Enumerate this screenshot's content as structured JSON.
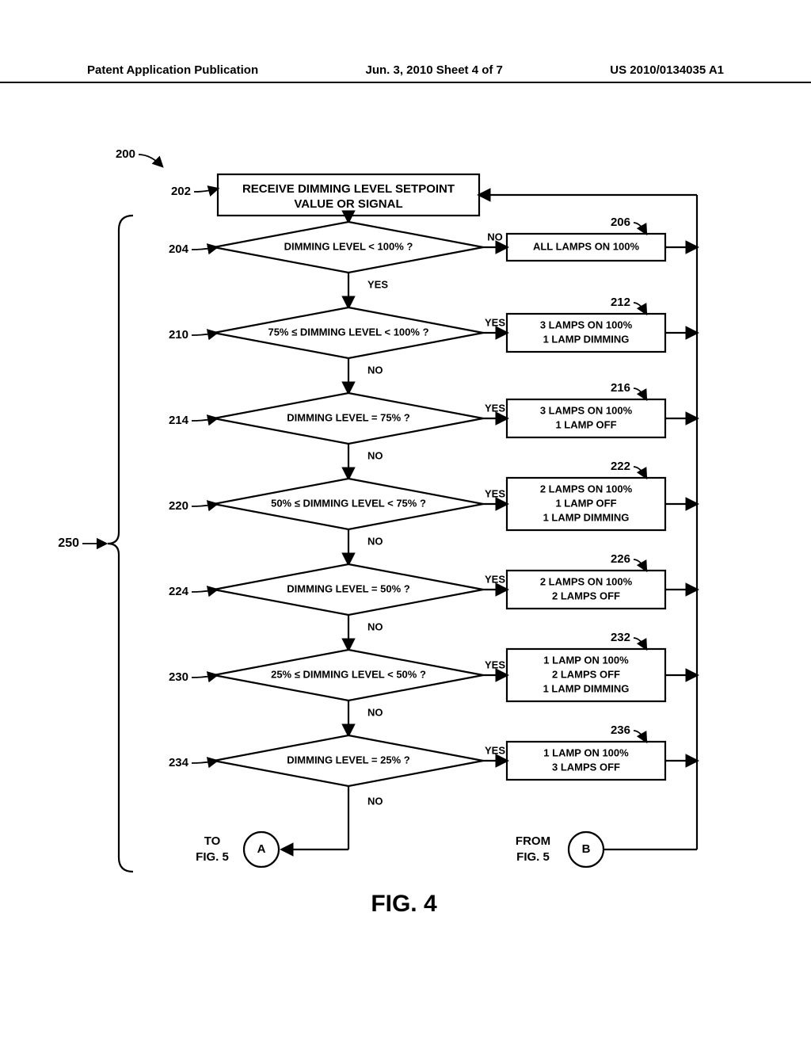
{
  "header": {
    "left": "Patent Application Publication",
    "center": "Jun. 3, 2010  Sheet 4 of 7",
    "right": "US 2010/0134035 A1"
  },
  "figure": {
    "title": "FIG. 4",
    "flow_ref": "200",
    "bracket_ref": "250",
    "start_box": {
      "ref": "202",
      "text1": "RECEIVE DIMMING LEVEL SETPOINT",
      "text2": "VALUE OR SIGNAL"
    },
    "decisions": [
      {
        "ref": "204",
        "cond": "DIMMING LEVEL < 100% ?",
        "branch_label": "NO",
        "down_label": "YES",
        "result_ref": "206",
        "result_lines": [
          "ALL LAMPS ON 100%"
        ]
      },
      {
        "ref": "210",
        "cond": "75% ≤ DIMMING LEVEL < 100% ?",
        "branch_label": "YES",
        "down_label": "NO",
        "result_ref": "212",
        "result_lines": [
          "3 LAMPS ON 100%",
          "1 LAMP DIMMING"
        ]
      },
      {
        "ref": "214",
        "cond": "DIMMING LEVEL = 75% ?",
        "branch_label": "YES",
        "down_label": "NO",
        "result_ref": "216",
        "result_lines": [
          "3 LAMPS ON 100%",
          "1 LAMP OFF"
        ]
      },
      {
        "ref": "220",
        "cond": "50% ≤ DIMMING LEVEL < 75% ?",
        "branch_label": "YES",
        "down_label": "NO",
        "result_ref": "222",
        "result_lines": [
          "2 LAMPS ON 100%",
          "1 LAMP OFF",
          "1 LAMP DIMMING"
        ]
      },
      {
        "ref": "224",
        "cond": "DIMMING LEVEL = 50% ?",
        "branch_label": "YES",
        "down_label": "NO",
        "result_ref": "226",
        "result_lines": [
          "2 LAMPS ON 100%",
          "2 LAMPS OFF"
        ]
      },
      {
        "ref": "230",
        "cond": "25% ≤ DIMMING LEVEL < 50% ?",
        "branch_label": "YES",
        "down_label": "NO",
        "result_ref": "232",
        "result_lines": [
          "1 LAMP ON 100%",
          "2 LAMPS OFF",
          "1 LAMP DIMMING"
        ]
      },
      {
        "ref": "234",
        "cond": "DIMMING LEVEL = 25% ?",
        "branch_label": "YES",
        "down_label": "NO",
        "result_ref": "236",
        "result_lines": [
          "1 LAMP ON 100%",
          "3 LAMPS OFF"
        ]
      }
    ],
    "connector_a": {
      "label": "A",
      "text1": "TO",
      "text2": "FIG. 5"
    },
    "connector_b": {
      "label": "B",
      "text1": "FROM",
      "text2": "FIG. 5"
    },
    "last_down_label": "NO"
  },
  "style": {
    "stroke": "#000000",
    "stroke_width": 2.2,
    "fill": "#ffffff",
    "font": "Arial"
  }
}
